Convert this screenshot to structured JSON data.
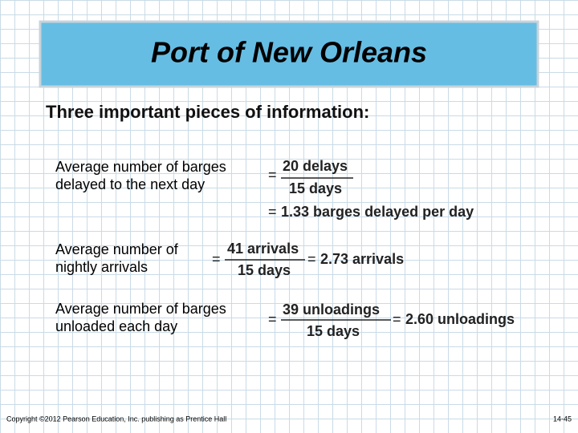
{
  "title": "Port of New Orleans",
  "subtitle": "Three important pieces of information:",
  "equals": "=",
  "items": [
    {
      "label": [
        "Average number of barges",
        "delayed to the next day"
      ],
      "numerator": "20 delays",
      "denominator": "15 days",
      "result": "1.33 barges delayed per day"
    },
    {
      "label": [
        "Average number of",
        "nightly arrivals"
      ],
      "numerator": "41 arrivals",
      "denominator": "15 days",
      "result": "2.73 arrivals"
    },
    {
      "label": [
        "Average number of barges",
        "unloaded each day"
      ],
      "numerator": "39 unloadings",
      "denominator": "15 days",
      "result": "2.60 unloadings"
    }
  ],
  "footer": {
    "copyright": "Copyright ©2012 Pearson Education, Inc. publishing as Prentice Hall",
    "page": "14-45"
  }
}
